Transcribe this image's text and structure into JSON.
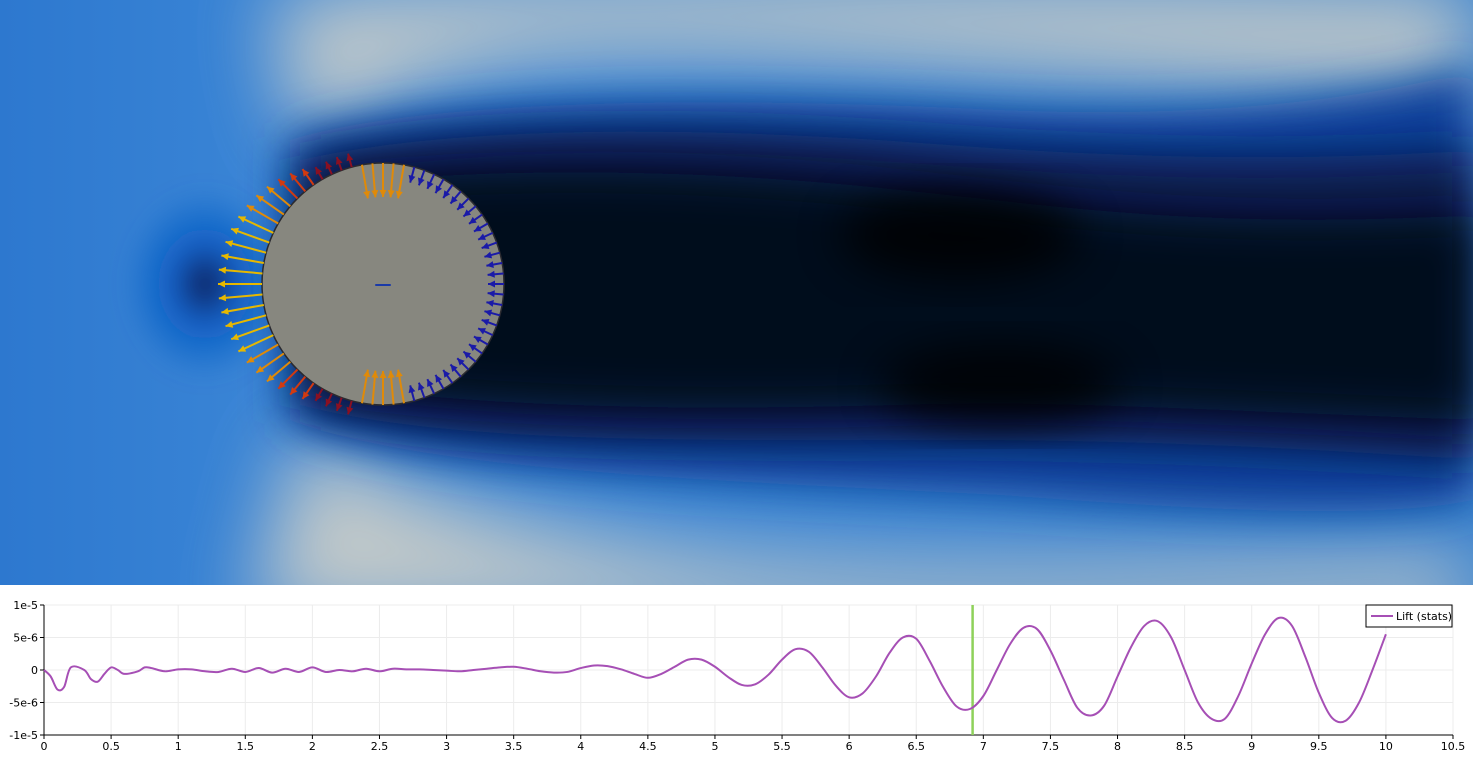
{
  "visualization": {
    "background_colors": [
      "#05060f",
      "#0a1f5c",
      "#0a5cc4",
      "#3a86d4",
      "#c9ccc8"
    ],
    "obstacle_color": "#87877f",
    "arrow_colors": [
      "#1a1aa8",
      "#8a1022",
      "#d23a10",
      "#e08a08",
      "#e6b800"
    ]
  },
  "chart_data": {
    "type": "line",
    "xlim": [
      0,
      10.5
    ],
    "ylim": [
      -1e-05,
      1e-05
    ],
    "x_ticks": [
      "0",
      "0.5",
      "1",
      "1.5",
      "2",
      "2.5",
      "3",
      "3.5",
      "4",
      "4.5",
      "5",
      "5.5",
      "6",
      "6.5",
      "7",
      "7.5",
      "8",
      "8.5",
      "9",
      "9.5",
      "10",
      "10.5"
    ],
    "y_ticks": [
      "1e-5",
      "5e-6",
      "0",
      "-5e-6",
      "-1e-5"
    ],
    "grid": true,
    "legend_position": "top-right",
    "series": [
      {
        "name": "Lift (stats)",
        "color": "#a64fb5",
        "x": [
          0,
          0.05,
          0.1,
          0.15,
          0.2,
          0.3,
          0.35,
          0.4,
          0.45,
          0.5,
          0.55,
          0.6,
          0.7,
          0.75,
          0.8,
          0.9,
          1.0,
          1.1,
          1.2,
          1.3,
          1.4,
          1.5,
          1.6,
          1.7,
          1.8,
          1.9,
          2.0,
          2.1,
          2.2,
          2.3,
          2.4,
          2.5,
          2.6,
          2.7,
          2.8,
          2.9,
          3.0,
          3.1,
          3.2,
          3.3,
          3.4,
          3.5,
          3.6,
          3.7,
          3.8,
          3.9,
          4.0,
          4.1,
          4.2,
          4.3,
          4.4,
          4.5,
          4.6,
          4.7,
          4.8,
          4.9,
          5.0,
          5.1,
          5.2,
          5.3,
          5.4,
          5.5,
          5.6,
          5.7,
          5.8,
          5.9,
          6.0,
          6.1,
          6.2,
          6.3,
          6.4,
          6.5,
          6.6,
          6.7,
          6.8,
          6.9,
          7.0,
          7.1,
          7.2,
          7.3,
          7.4,
          7.5,
          7.6,
          7.7,
          7.8,
          7.9,
          8.0,
          8.1,
          8.2,
          8.3,
          8.4,
          8.5,
          8.6,
          8.7,
          8.8,
          8.9,
          9.0,
          9.1,
          9.2,
          9.3,
          9.4,
          9.5,
          9.6,
          9.7,
          9.8,
          9.9,
          10.0
        ],
        "values": [
          0,
          -1e-06,
          -3e-06,
          -2.6e-06,
          4e-07,
          0,
          -1.4e-06,
          -1.8e-06,
          -6e-07,
          4e-07,
          0,
          -6e-07,
          -2e-07,
          4e-07,
          3e-07,
          -2e-07,
          1e-07,
          1e-07,
          -2e-07,
          -3e-07,
          2e-07,
          -3e-07,
          3e-07,
          -4e-07,
          2e-07,
          -3e-07,
          4e-07,
          -3e-07,
          0,
          -2e-07,
          2e-07,
          -2e-07,
          2e-07,
          1e-07,
          1e-07,
          0,
          -1e-07,
          -2e-07,
          0,
          2e-07,
          4e-07,
          5e-07,
          2e-07,
          -2e-07,
          -4e-07,
          -3e-07,
          3e-07,
          7e-07,
          6e-07,
          1e-07,
          -6e-07,
          -1.2e-06,
          -6e-07,
          5e-07,
          1.6e-06,
          1.6e-06,
          5e-07,
          -1.1e-06,
          -2.3e-06,
          -2.2e-06,
          -7e-07,
          1.6e-06,
          3.2e-06,
          2.8e-06,
          4e-07,
          -2.4e-06,
          -4.2e-06,
          -3.6e-06,
          -1e-06,
          2.6e-06,
          5e-06,
          4.8e-06,
          1.4e-06,
          -2.6e-06,
          -5.6e-06,
          -6e-06,
          -4e-06,
          0,
          4e-06,
          6.5e-06,
          6.3e-06,
          3e-06,
          -1.5e-06,
          -5.8e-06,
          -7e-06,
          -5.5e-06,
          -1e-06,
          3.5e-06,
          6.8e-06,
          7.5e-06,
          5e-06,
          0,
          -5e-06,
          -7.5e-06,
          -7.5e-06,
          -4e-06,
          1e-06,
          5.5e-06,
          8e-06,
          6.8e-06,
          2e-06,
          -3.5e-06,
          -7.4e-06,
          -7.8e-06,
          -5e-06,
          0,
          5.5e-06
        ]
      }
    ],
    "time_marker": 6.92,
    "time_marker_color": "#8ed15a"
  }
}
